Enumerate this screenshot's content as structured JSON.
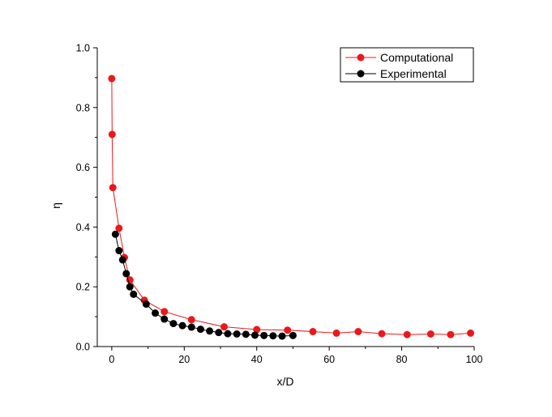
{
  "chart_data": {
    "type": "line",
    "xlabel": "x/D",
    "ylabel": "η",
    "xlim": [
      -4,
      100
    ],
    "ylim": [
      0,
      1.0
    ],
    "x_ticks": [
      "0",
      "20",
      "40",
      "60",
      "80",
      "100"
    ],
    "y_ticks": [
      "0.0",
      "0.2",
      "0.4",
      "0.6",
      "0.8",
      "1.0"
    ],
    "grid": false,
    "legend_position": "top-right",
    "series": [
      {
        "name": "Computational",
        "color": "#e8191c",
        "marker": "circle",
        "x": [
          0.0,
          0.1,
          0.3,
          2.0,
          3.5,
          5.0,
          9.0,
          14.5,
          22.0,
          31.0,
          40.0,
          48.5,
          55.5,
          62.0,
          68.0,
          74.5,
          81.5,
          88.0,
          93.5,
          99.0
        ],
        "y": [
          0.897,
          0.71,
          0.532,
          0.396,
          0.298,
          0.223,
          0.155,
          0.117,
          0.09,
          0.066,
          0.057,
          0.055,
          0.05,
          0.045,
          0.05,
          0.043,
          0.04,
          0.042,
          0.04,
          0.045
        ]
      },
      {
        "name": "Experimental",
        "color": "#000000",
        "marker": "circle",
        "x": [
          1.0,
          2.0,
          3.0,
          4.0,
          5.0,
          6.0,
          9.5,
          12.0,
          14.5,
          17.0,
          19.5,
          22.0,
          24.5,
          27.0,
          29.5,
          32.0,
          34.5,
          37.0,
          39.5,
          42.0,
          44.5,
          47.0,
          50.0
        ],
        "y": [
          0.376,
          0.321,
          0.29,
          0.244,
          0.2,
          0.175,
          0.142,
          0.112,
          0.092,
          0.077,
          0.07,
          0.065,
          0.058,
          0.052,
          0.047,
          0.043,
          0.042,
          0.041,
          0.038,
          0.037,
          0.036,
          0.035,
          0.037
        ]
      }
    ]
  }
}
